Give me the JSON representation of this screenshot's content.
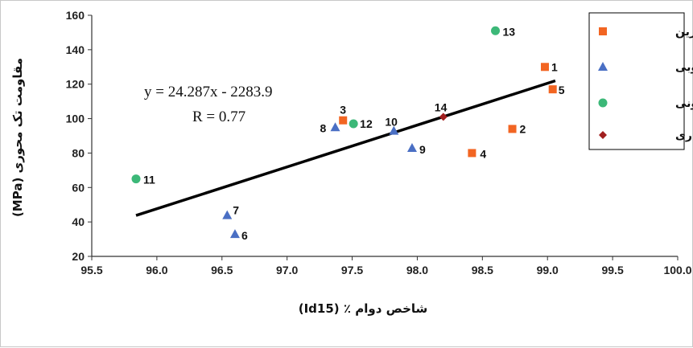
{
  "chart_data": {
    "type": "scatter",
    "xlabel": "شاخص دوام ٪ (Id15)",
    "ylabel": "مقاومت تک محوری (MPa)",
    "xlim": [
      95.5,
      100.0
    ],
    "ylim": [
      20,
      160
    ],
    "x_ticks": [
      "95.5",
      "96.0",
      "96.5",
      "97.0",
      "97.5",
      "98.0",
      "98.5",
      "99.0",
      "99.5",
      "100.0"
    ],
    "y_ticks": [
      "20",
      "40",
      "60",
      "80",
      "100",
      "120",
      "140",
      "160"
    ],
    "grid": false,
    "legend_position": "top-right",
    "series": [
      {
        "name": "آذرین",
        "marker": "square",
        "color": "#f26522",
        "points": [
          {
            "label": "1",
            "x": 98.98,
            "y": 130
          },
          {
            "label": "2",
            "x": 98.73,
            "y": 94
          },
          {
            "label": "3",
            "x": 97.43,
            "y": 99
          },
          {
            "label": "4",
            "x": 98.42,
            "y": 80
          },
          {
            "label": "5",
            "x": 99.04,
            "y": 117
          }
        ]
      },
      {
        "name": "رسوبی",
        "marker": "triangle",
        "color": "#4a6fc4",
        "points": [
          {
            "label": "6",
            "x": 96.6,
            "y": 33
          },
          {
            "label": "7",
            "x": 96.54,
            "y": 44
          },
          {
            "label": "8",
            "x": 97.37,
            "y": 95
          },
          {
            "label": "9",
            "x": 97.96,
            "y": 83
          },
          {
            "label": "10",
            "x": 97.82,
            "y": 93
          }
        ]
      },
      {
        "name": "دگرگونی",
        "marker": "circle",
        "color": "#3cb878",
        "points": [
          {
            "label": "11",
            "x": 95.84,
            "y": 65
          },
          {
            "label": "12",
            "x": 97.51,
            "y": 97
          },
          {
            "label": "13",
            "x": 98.6,
            "y": 151
          }
        ]
      },
      {
        "name": "آذر آواری",
        "marker": "diamond",
        "color": "#a11f1f",
        "points": [
          {
            "label": "14",
            "x": 98.2,
            "y": 101
          }
        ]
      }
    ],
    "trendline": {
      "equation": "y = 24.287x - 2283.9",
      "r_text": "R = 0.77",
      "slope": 24.287,
      "intercept": -2283.9,
      "x_from": 95.84,
      "x_to": 99.06
    }
  }
}
